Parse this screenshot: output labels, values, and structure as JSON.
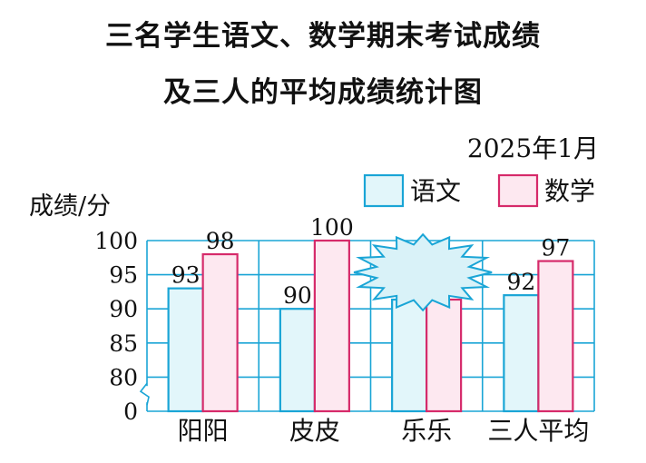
{
  "chart_data": {
    "type": "bar",
    "title_line1": "三名学生语文、数学期末考试成绩",
    "title_line2": "及三人的平均成绩统计图",
    "date": "2025年1月",
    "ylabel": "成绩/分",
    "categories": [
      "阳阳",
      "皮皮",
      "乐乐",
      "三人平均"
    ],
    "series": [
      {
        "name": "语文",
        "values": [
          93,
          90,
          null,
          92
        ],
        "color": "#e2f6fa",
        "stroke": "#1aa5d6"
      },
      {
        "name": "数学",
        "values": [
          98,
          100,
          null,
          97
        ],
        "color": "#fde8f0",
        "stroke": "#d62a6a"
      }
    ],
    "hidden_note": "乐乐's bars are obscured by a starburst shape",
    "y_ticks": [
      "0",
      "80",
      "85",
      "90",
      "95",
      "100"
    ],
    "ylim": [
      75,
      100
    ],
    "y_axis_break": true,
    "grid": true,
    "legend_position": "top-right",
    "colors": {
      "grid": "#1aa5d6",
      "starburst_fill": "#d9f2f8",
      "starburst_stroke": "#1aa5d6"
    }
  }
}
